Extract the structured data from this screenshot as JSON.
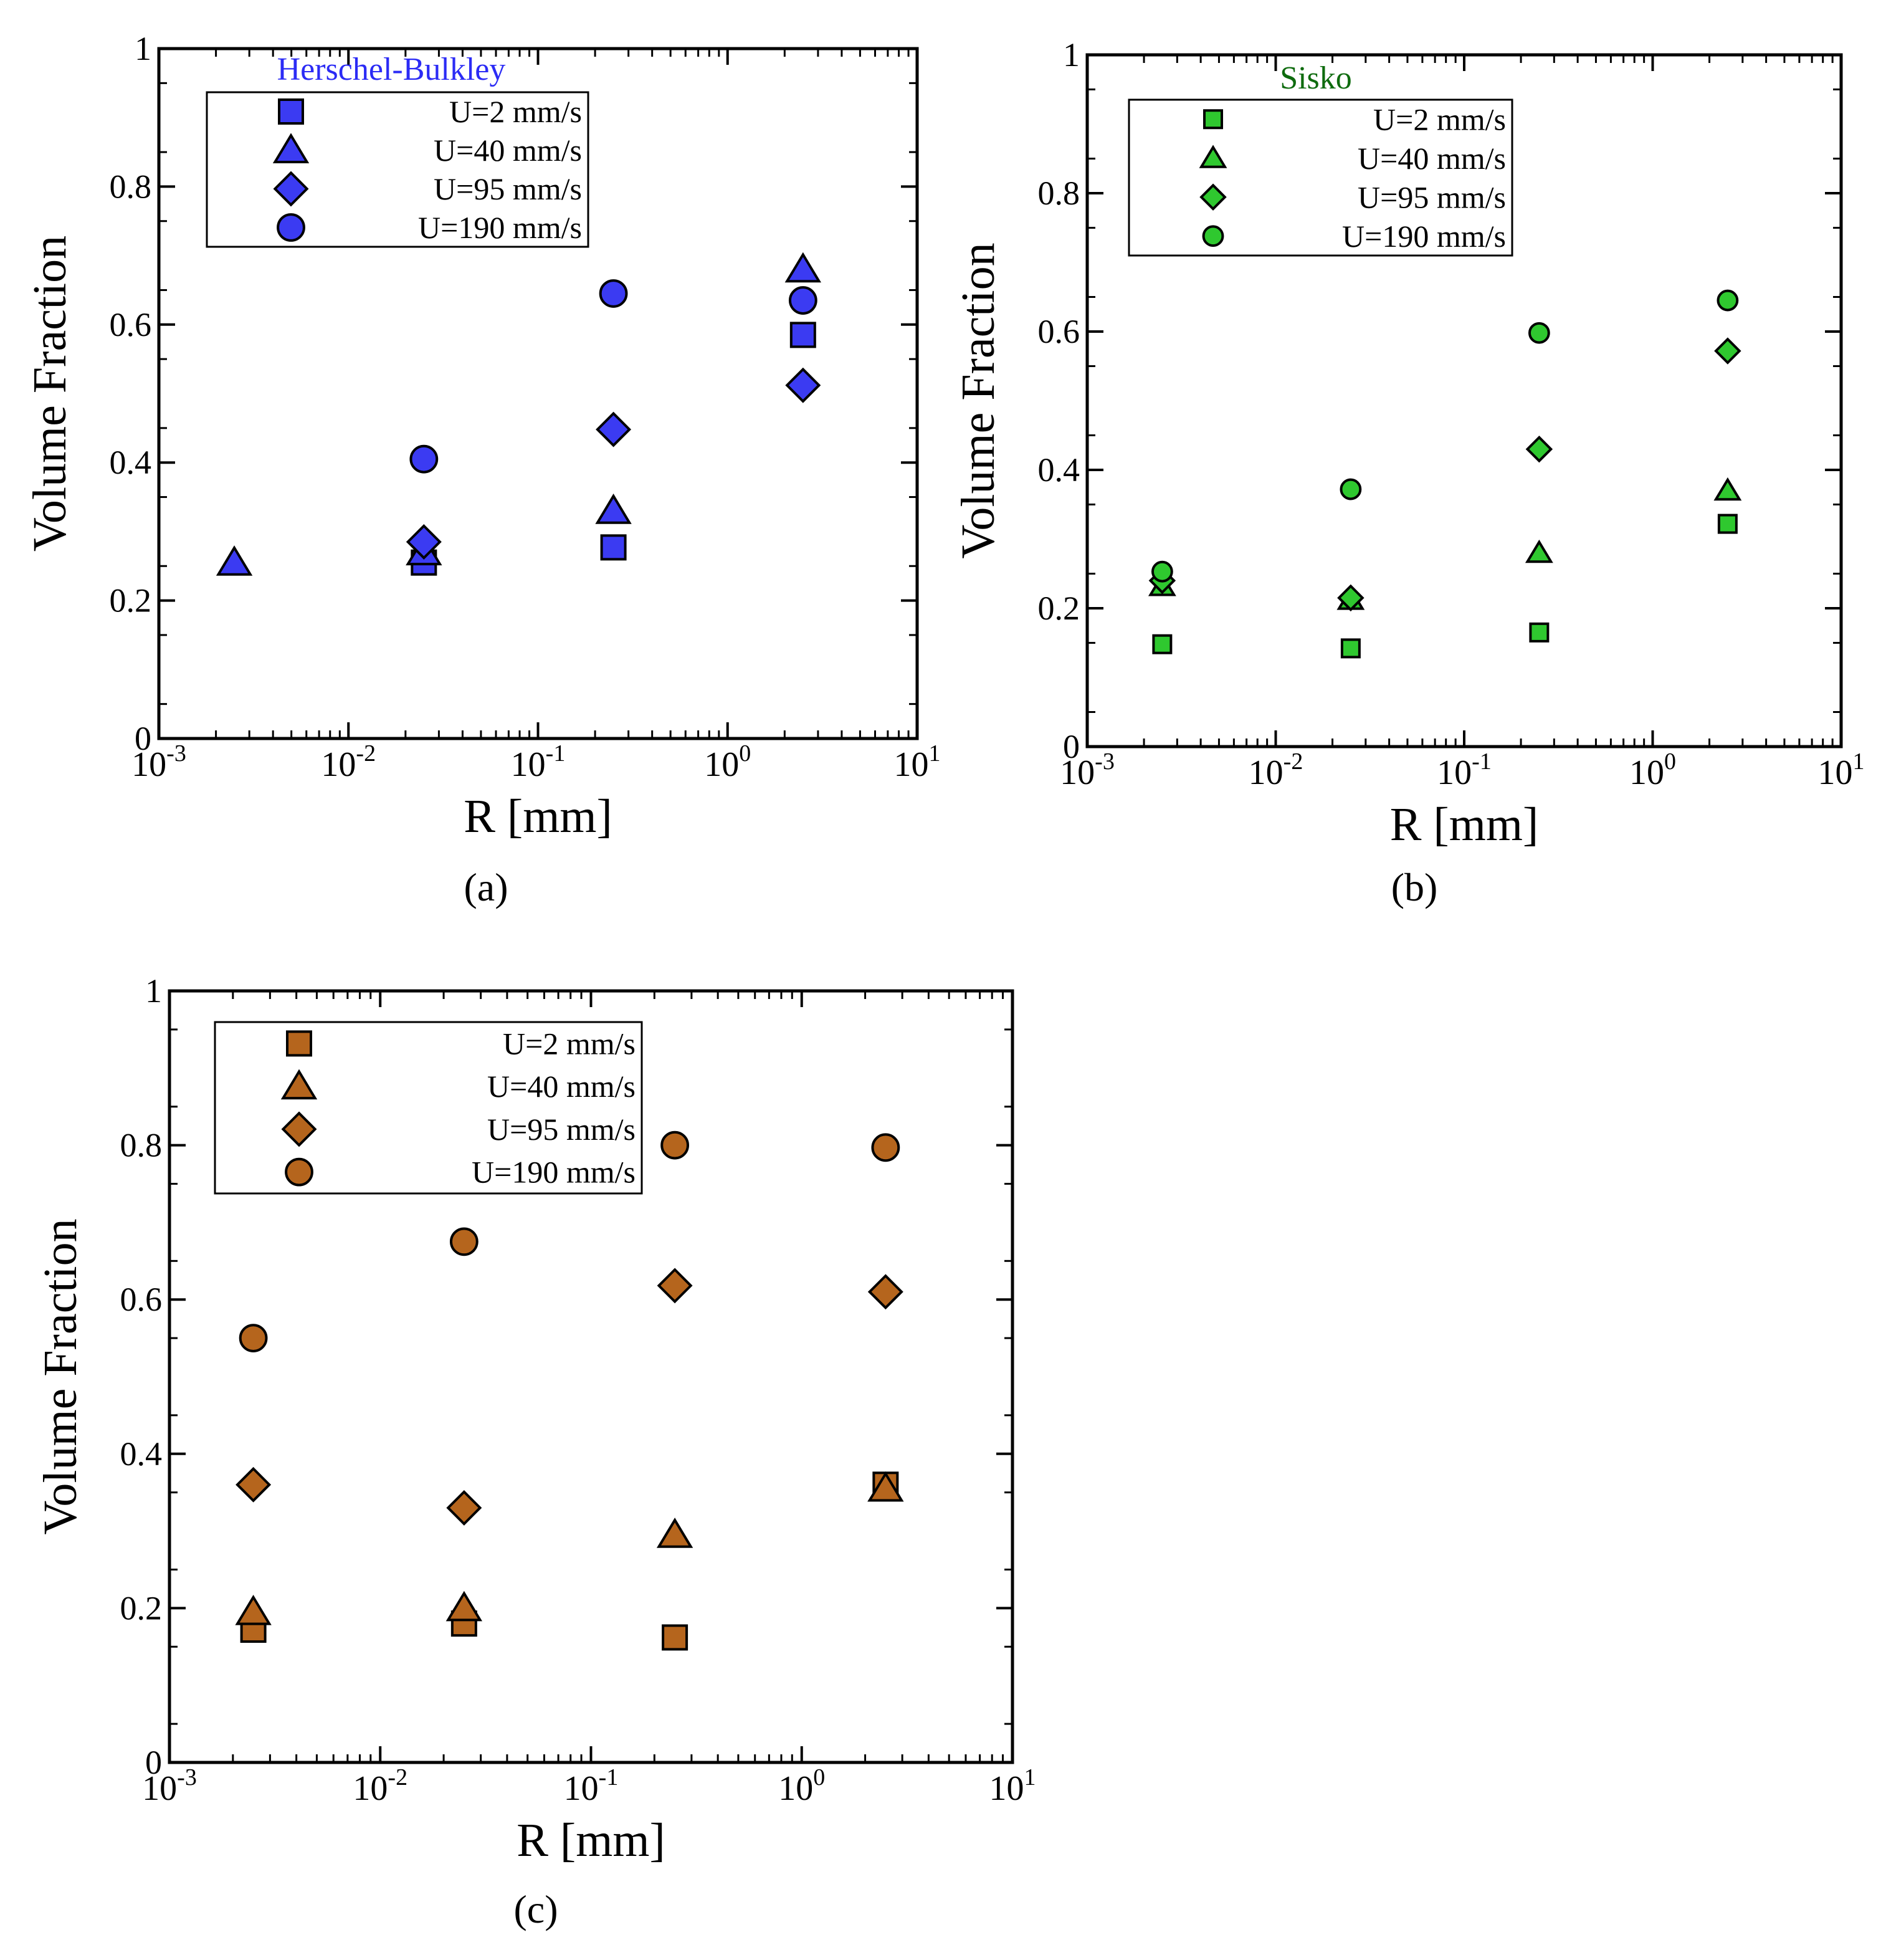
{
  "figure": {
    "panel_labels": [
      "(a)",
      "(b)",
      "(c)"
    ]
  },
  "chart_data": [
    {
      "type": "scatter",
      "panel": "a",
      "title": "Herschel-Bulkley",
      "title_color": "#2b2bf5",
      "xlabel": "R [mm]",
      "ylabel": "Volume Fraction",
      "xscale": "log",
      "xlim": [
        0.001,
        10
      ],
      "ylim": [
        0,
        1
      ],
      "xtick_exponents": [
        "-3",
        "-2",
        "-1",
        "0",
        "1"
      ],
      "ytick_labels": [
        "0",
        "0.2",
        "0.4",
        "0.6",
        "0.8",
        "1"
      ],
      "grid": false,
      "legend_position": "top-left",
      "marker_fill": "#3b3bf2",
      "marker_size": "large",
      "series": [
        {
          "name": "U=2 mm/s",
          "marker": "square",
          "x": [
            0.025,
            0.25,
            2.5
          ],
          "y": [
            0.255,
            0.277,
            0.585
          ]
        },
        {
          "name": "U=40 mm/s",
          "marker": "triangle",
          "x": [
            0.0025,
            0.025,
            0.25,
            2.5
          ],
          "y": [
            0.255,
            0.27,
            0.33,
            0.68
          ]
        },
        {
          "name": "U=95 mm/s",
          "marker": "diamond",
          "x": [
            0.025,
            0.25,
            2.5
          ],
          "y": [
            0.285,
            0.448,
            0.512
          ]
        },
        {
          "name": "U=190 mm/s",
          "marker": "circle",
          "x": [
            0.025,
            0.25,
            2.5
          ],
          "y": [
            0.405,
            0.645,
            0.635
          ]
        }
      ]
    },
    {
      "type": "scatter",
      "panel": "b",
      "title": "Sisko",
      "title_color": "#0e6b0e",
      "xlabel": "R [mm]",
      "ylabel": "Volume Fraction",
      "xscale": "log",
      "xlim": [
        0.001,
        10
      ],
      "ylim": [
        0,
        1
      ],
      "xtick_exponents": [
        "-3",
        "-2",
        "-1",
        "0",
        "1"
      ],
      "ytick_labels": [
        "0",
        "0.2",
        "0.4",
        "0.6",
        "0.8",
        "1"
      ],
      "grid": false,
      "legend_position": "top-left",
      "marker_fill": "#2fc82f",
      "marker_size": "small",
      "series": [
        {
          "name": "U=2 mm/s",
          "marker": "square",
          "x": [
            0.0025,
            0.025,
            0.25,
            2.5
          ],
          "y": [
            0.148,
            0.142,
            0.165,
            0.322
          ]
        },
        {
          "name": "U=40 mm/s",
          "marker": "triangle",
          "x": [
            0.0025,
            0.025,
            0.25,
            2.5
          ],
          "y": [
            0.232,
            0.212,
            0.28,
            0.37
          ]
        },
        {
          "name": "U=95 mm/s",
          "marker": "diamond",
          "x": [
            0.0025,
            0.025,
            0.25,
            2.5
          ],
          "y": [
            0.24,
            0.215,
            0.43,
            0.572
          ]
        },
        {
          "name": "U=190 mm/s",
          "marker": "circle",
          "x": [
            0.0025,
            0.025,
            0.25,
            2.5
          ],
          "y": [
            0.253,
            0.372,
            0.598,
            0.645
          ]
        }
      ]
    },
    {
      "type": "scatter",
      "panel": "c",
      "title": "",
      "xlabel": "R [mm]",
      "ylabel": "Volume Fraction",
      "xscale": "log",
      "xlim": [
        0.001,
        10
      ],
      "ylim": [
        0,
        1
      ],
      "xtick_exponents": [
        "-3",
        "-2",
        "-1",
        "0",
        "1"
      ],
      "ytick_labels": [
        "0",
        "0.2",
        "0.4",
        "0.6",
        "0.8",
        "1"
      ],
      "grid": false,
      "legend_position": "top-left",
      "marker_fill": "#b5651d",
      "marker_size": "large",
      "series": [
        {
          "name": "U=2 mm/s",
          "marker": "square",
          "x": [
            0.0025,
            0.025,
            0.25,
            2.5
          ],
          "y": [
            0.172,
            0.18,
            0.162,
            0.36
          ]
        },
        {
          "name": "U=40 mm/s",
          "marker": "triangle",
          "x": [
            0.0025,
            0.025,
            0.25,
            2.5
          ],
          "y": [
            0.195,
            0.2,
            0.295,
            0.355
          ]
        },
        {
          "name": "U=95 mm/s",
          "marker": "diamond",
          "x": [
            0.0025,
            0.025,
            0.25,
            2.5
          ],
          "y": [
            0.36,
            0.33,
            0.618,
            0.61
          ]
        },
        {
          "name": "U=190 mm/s",
          "marker": "circle",
          "x": [
            0.0025,
            0.025,
            0.25,
            2.5
          ],
          "y": [
            0.55,
            0.675,
            0.8,
            0.797
          ]
        }
      ]
    }
  ]
}
